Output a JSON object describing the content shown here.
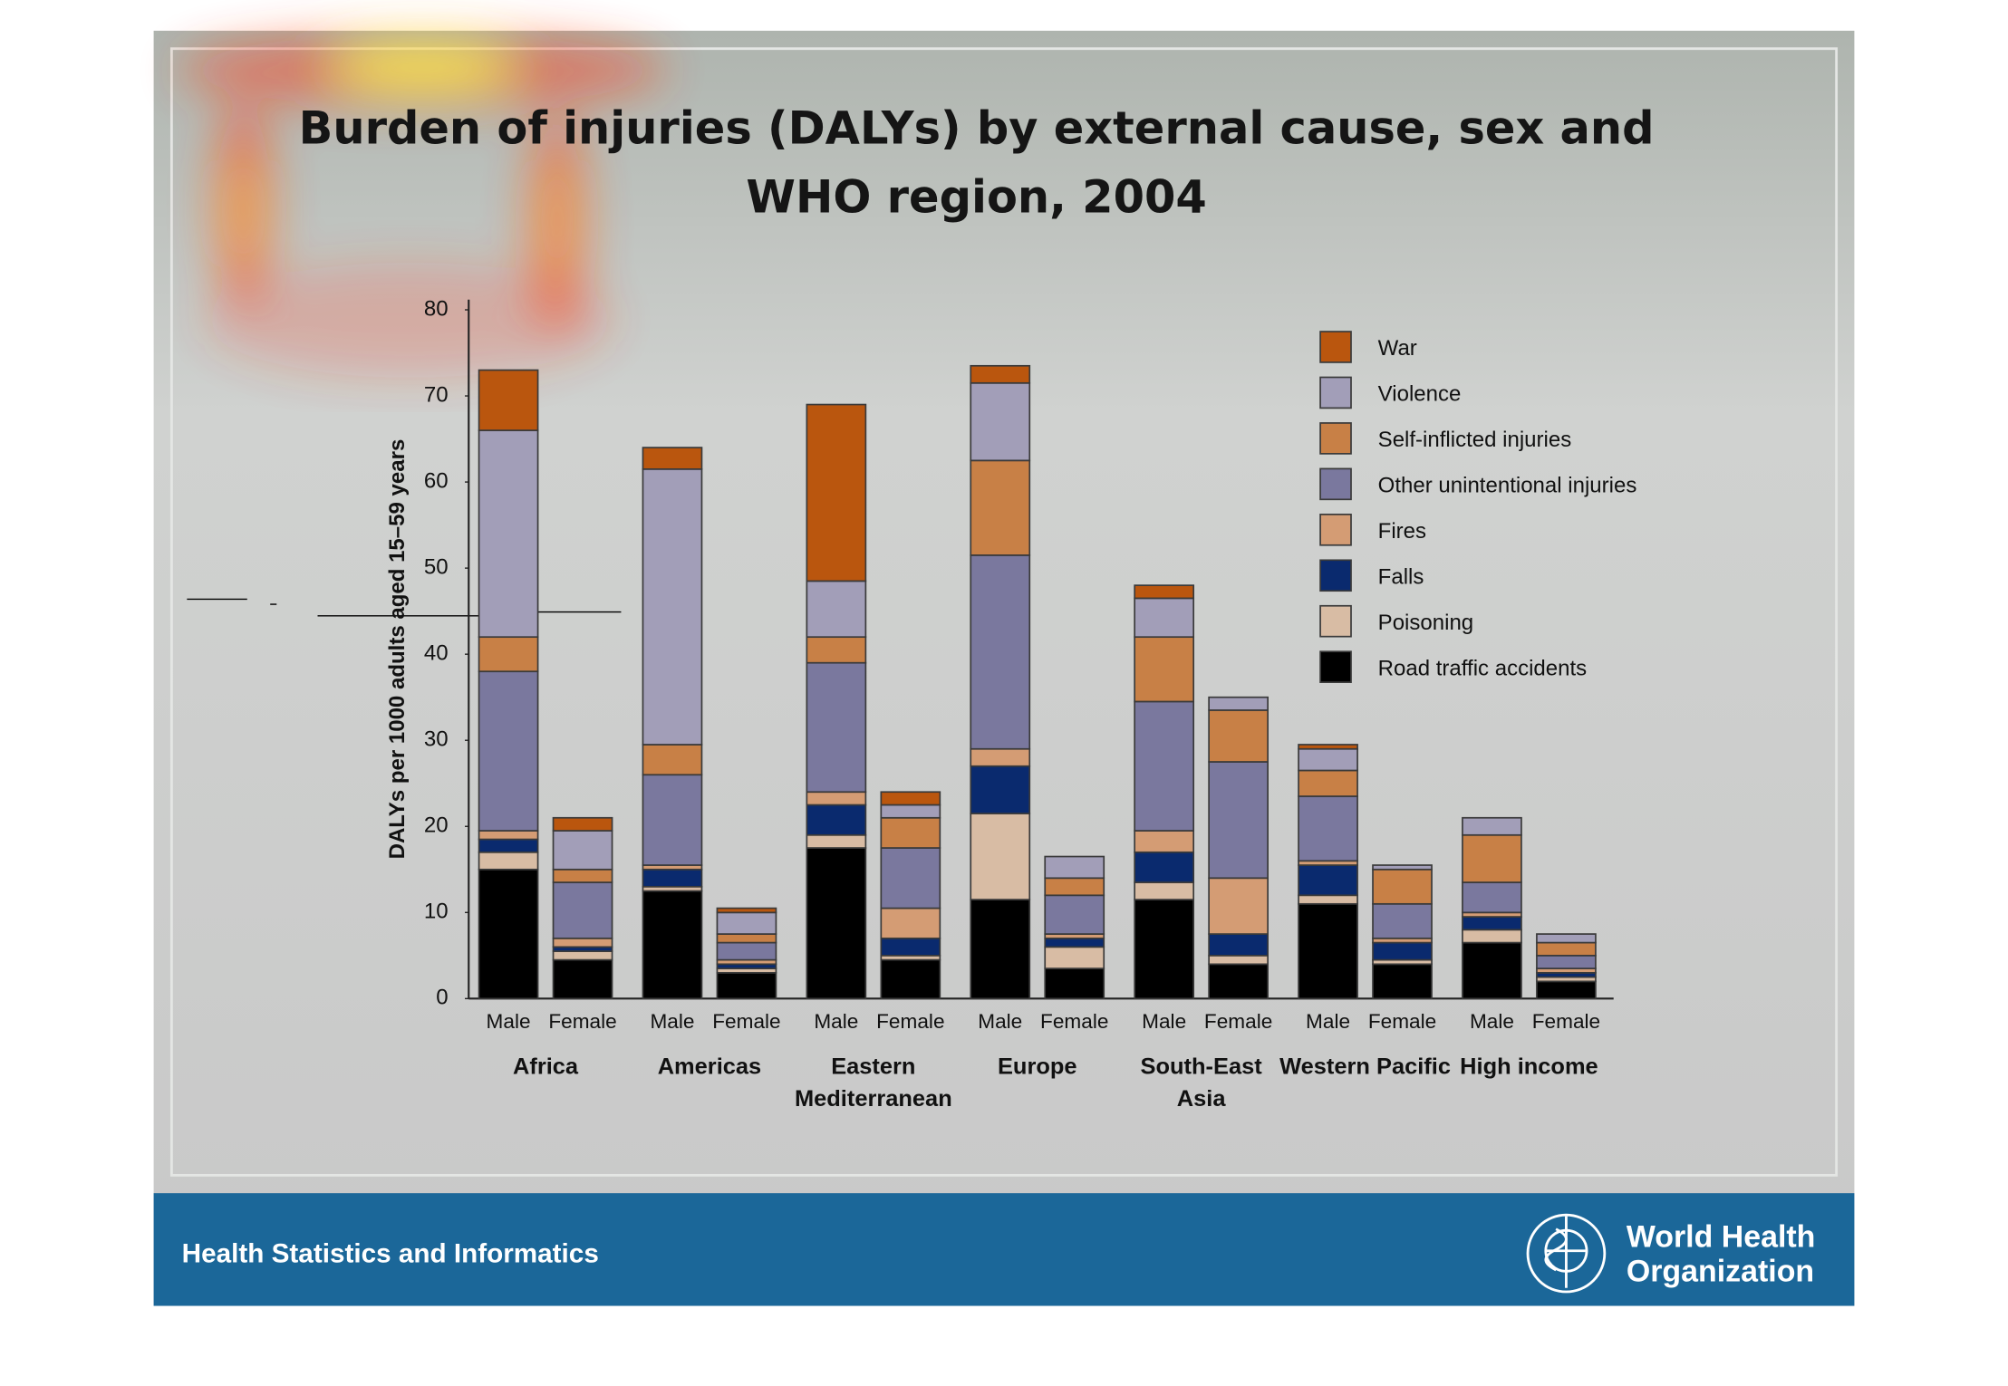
{
  "chart_data": {
    "type": "stacked-bar",
    "title": "Burden of injuries (DALYs) by external cause, sex and WHO region, 2004",
    "ylabel": "DALYs per 1000 adults aged 15–59 years",
    "categories": [
      "Male",
      "Female",
      "Male",
      "Female",
      "Male",
      "Female",
      "Male",
      "Female",
      "Male",
      "Female",
      "Male",
      "Female",
      "Male",
      "Female"
    ],
    "groups": [
      "Africa",
      "Americas",
      "Eastern\nMediterranean",
      "Europe",
      "South-East\nAsia",
      "Western Pacific",
      "High income"
    ],
    "ylim": [
      0,
      80
    ],
    "yticks": [
      0,
      10,
      20,
      30,
      40,
      50,
      60,
      70,
      80
    ],
    "grid": false,
    "legend": "top-right",
    "series": [
      {
        "name": "Road traffic accidents",
        "color": "#000000",
        "values": [
          15,
          4.5,
          12.5,
          3,
          17.5,
          4.5,
          11.5,
          3.5,
          11.5,
          4,
          11,
          4,
          6.5,
          2
        ]
      },
      {
        "name": "Poisoning",
        "color": "#d8bca4",
        "values": [
          2,
          1,
          0.5,
          0.5,
          1.5,
          0.5,
          10,
          2.5,
          2,
          1,
          1,
          0.5,
          1.5,
          0.5
        ]
      },
      {
        "name": "Falls",
        "color": "#0a2a6e",
        "values": [
          1.5,
          0.5,
          2,
          0.5,
          3.5,
          2,
          5.5,
          1,
          3.5,
          2.5,
          3.5,
          2,
          1.5,
          0.5
        ]
      },
      {
        "name": "Fires",
        "color": "#d49c74",
        "values": [
          1,
          1,
          0.5,
          0.5,
          1.5,
          3.5,
          2,
          0.5,
          2.5,
          6.5,
          0.5,
          0.5,
          0.5,
          0.5
        ]
      },
      {
        "name": "Other unintentional injuries",
        "color": "#7a789e",
        "values": [
          18.5,
          6.5,
          10.5,
          2,
          15,
          7,
          22.5,
          4.5,
          15,
          13.5,
          7.5,
          4,
          3.5,
          1.5
        ]
      },
      {
        "name": "Self-inflicted injuries",
        "color": "#c88046",
        "values": [
          4,
          1.5,
          3.5,
          1,
          3,
          3.5,
          11,
          2,
          7.5,
          6,
          3,
          4,
          5.5,
          1.5
        ]
      },
      {
        "name": "Violence",
        "color": "#a29eb8",
        "values": [
          24,
          4.5,
          32,
          2.5,
          6.5,
          1.5,
          9,
          2.5,
          4.5,
          1.5,
          2.5,
          0.5,
          2,
          1
        ]
      },
      {
        "name": "War",
        "color": "#ba560e",
        "values": [
          7,
          1.5,
          2.5,
          0.5,
          20.5,
          1.5,
          2,
          0,
          1.5,
          0,
          0.5,
          0,
          0,
          0
        ]
      }
    ]
  },
  "slide": {
    "footer": "Health Statistics and Informatics",
    "organization": "World Health\nOrganization"
  }
}
